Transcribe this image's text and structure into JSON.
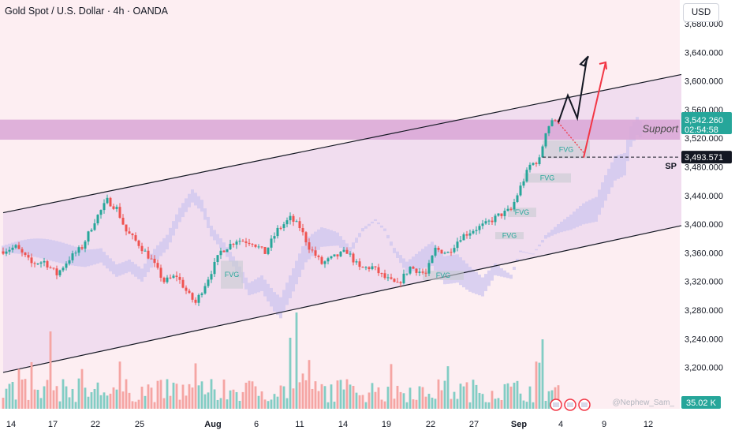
{
  "header": {
    "title": "Gold Spot / U.S. Dollar · 4h · OANDA",
    "currency_button": "USD"
  },
  "annotations": {
    "support_label": "Support",
    "sp_label": "SP",
    "watermark": "@Nephew_Sam_",
    "fvg_label": "FVG"
  },
  "price_tags": {
    "last_price": "3,542.260",
    "countdown": "02:54:58",
    "sp_price": "3,493.571",
    "volume": "35.02 K"
  },
  "colors": {
    "bull": "#26a69a",
    "bear": "#ef5350",
    "channel_fill": "#f1ddef",
    "bg_pink": "#fdeef2",
    "support_zone": "#d9a6d6",
    "cloud_purple": "#cfc7f0",
    "cloud_red": "#f2b8c4",
    "projection_red": "#f23645"
  },
  "chart_data": {
    "type": "candlestick",
    "instrument": "Gold Spot / U.S. Dollar",
    "timeframe": "4h",
    "source": "OANDA",
    "y_ticks": [
      3200,
      3240,
      3280,
      3320,
      3360,
      3400,
      3440,
      3480,
      3520,
      3560,
      3600,
      3640,
      3680
    ],
    "y_tick_labels": [
      "3,200.000",
      "3,240.000",
      "3,280.000",
      "3,320.000",
      "3,360.000",
      "3,400.000",
      "3,440.000",
      "3,480.000",
      "3,520.000",
      "3,560.000",
      "3,600.000",
      "3,640.000",
      "3,680.000"
    ],
    "ylim": [
      3186,
      3710
    ],
    "x_tick_labels": [
      "14",
      "17",
      "22",
      "25",
      "Aug",
      "6",
      "11",
      "14",
      "19",
      "22",
      "27",
      "Sep",
      "4",
      "9",
      "12"
    ],
    "last_price": 3542.26,
    "sp_level": 3493.571,
    "support_zone": [
      3518,
      3546
    ],
    "channel_upper": [
      [
        0,
        3416
      ],
      [
        215,
        3609
      ]
    ],
    "channel_lower": [
      [
        0,
        3193
      ],
      [
        215,
        3398
      ]
    ],
    "fvg_zones": [
      {
        "from": 69,
        "to": 76,
        "low": 3310,
        "high": 3349
      },
      {
        "from": 133,
        "to": 146,
        "low": 3322,
        "high": 3335
      },
      {
        "from": 156,
        "to": 165,
        "low": 3379,
        "high": 3389
      },
      {
        "from": 160,
        "to": 169,
        "low": 3410,
        "high": 3423
      },
      {
        "from": 165,
        "to": 180,
        "low": 3458,
        "high": 3471
      },
      {
        "from": 171,
        "to": 186,
        "low": 3492,
        "high": 3517
      }
    ],
    "projection_black": [
      3542,
      3580,
      3548,
      3630
    ],
    "projection_red": [
      3493,
      3626
    ],
    "volume_last": "35.02 K"
  }
}
